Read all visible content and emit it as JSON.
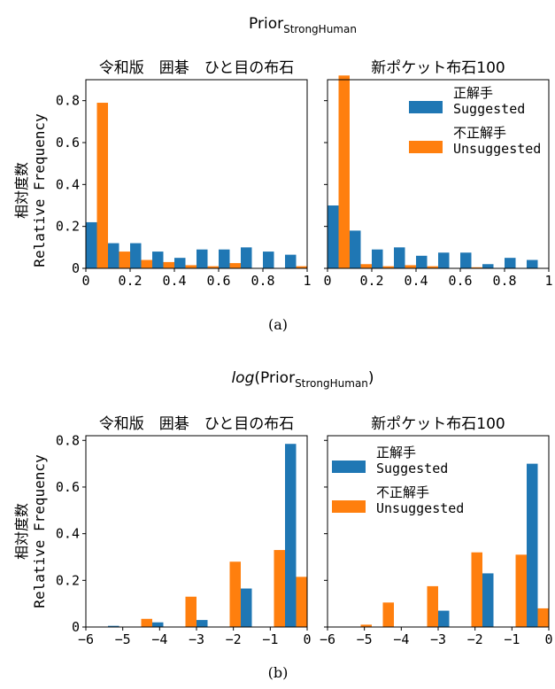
{
  "colors": {
    "suggested": "#1f77b4",
    "unsuggested": "#ff7f0e"
  },
  "figure_a": {
    "title_base": "Prior",
    "title_sub": "StrongHuman",
    "caption": "(a)"
  },
  "figure_b": {
    "title_prefix": "log",
    "title_base": "(Prior",
    "title_sub": "StrongHuman",
    "title_suffix": ")",
    "caption": "(b)"
  },
  "ylabel_jp": "相対度数",
  "ylabel_en": "Relative Frequency",
  "legend": {
    "suggested_jp": "正解手",
    "suggested_en": "Suggested",
    "unsuggested_jp": "不正解手",
    "unsuggested_en": "Unsuggested"
  },
  "chart_data": [
    {
      "id": "a-left",
      "type": "bar",
      "title": "令和版　囲碁　ひと目の布石",
      "xlim": [
        0,
        1
      ],
      "ylim": [
        0,
        0.9
      ],
      "xticks": [
        0,
        0.2,
        0.4,
        0.6,
        0.8,
        1
      ],
      "xticklabels": [
        "0",
        "0.2",
        "0.4",
        "0.6",
        "0.8",
        "1"
      ],
      "yticks": [
        0,
        0.2,
        0.4,
        0.6,
        0.8
      ],
      "yticklabels": [
        "0",
        "0.2",
        "0.4",
        "0.6",
        "0.8"
      ],
      "bin_edges": [
        0,
        0.1,
        0.2,
        0.3,
        0.4,
        0.5,
        0.6,
        0.7,
        0.8,
        0.9,
        1.0
      ],
      "series": [
        {
          "name": "Suggested",
          "values": [
            0.22,
            0.12,
            0.12,
            0.08,
            0.05,
            0.09,
            0.09,
            0.1,
            0.08,
            0.065
          ]
        },
        {
          "name": "Unsuggested",
          "values": [
            0.79,
            0.08,
            0.04,
            0.03,
            0.015,
            0.01,
            0.025,
            0.0,
            0.0,
            0.01
          ]
        }
      ],
      "legend": false
    },
    {
      "id": "a-right",
      "type": "bar",
      "title": "新ポケット布石100",
      "xlim": [
        0,
        1
      ],
      "ylim": [
        0,
        0.9
      ],
      "xticks": [
        0,
        0.2,
        0.4,
        0.6,
        0.8,
        1
      ],
      "xticklabels": [
        "0",
        "0.2",
        "0.4",
        "0.6",
        "0.8",
        "1"
      ],
      "yticks": [
        0,
        0.2,
        0.4,
        0.6,
        0.8
      ],
      "yticklabels": [
        "",
        "",
        "",
        "",
        ""
      ],
      "bin_edges": [
        0,
        0.1,
        0.2,
        0.3,
        0.4,
        0.5,
        0.6,
        0.7,
        0.8,
        0.9,
        1.0
      ],
      "series": [
        {
          "name": "Suggested",
          "values": [
            0.3,
            0.18,
            0.09,
            0.1,
            0.06,
            0.075,
            0.075,
            0.02,
            0.05,
            0.04
          ]
        },
        {
          "name": "Unsuggested",
          "values": [
            0.92,
            0.02,
            0.01,
            0.015,
            0.01,
            0.0,
            0.005,
            0.0,
            0.0,
            0.0
          ]
        }
      ],
      "legend": true,
      "legend_position": "top-right"
    },
    {
      "id": "b-left",
      "type": "bar",
      "title": "令和版　囲碁　ひと目の布石",
      "xlim": [
        -6,
        0
      ],
      "ylim": [
        0,
        0.82
      ],
      "xticks": [
        -6,
        -5,
        -4,
        -3,
        -2,
        -1,
        0
      ],
      "xticklabels": [
        "−6",
        "−5",
        "−4",
        "−3",
        "−2",
        "−1",
        "0"
      ],
      "yticks": [
        0,
        0.2,
        0.4,
        0.6,
        0.8
      ],
      "yticklabels": [
        "0",
        "0.2",
        "0.4",
        "0.6",
        "0.8"
      ],
      "bin_edges": [
        -6,
        -5.4,
        -4.8,
        -4.2,
        -3.6,
        -3.0,
        -2.4,
        -1.8,
        -1.2,
        -0.6,
        0
      ],
      "series": [
        {
          "name": "Suggested",
          "values": [
            0.0,
            0.005,
            0.0,
            0.02,
            0.0,
            0.03,
            0.0,
            0.165,
            0.0,
            0.785
          ]
        },
        {
          "name": "Unsuggested",
          "values": [
            0.0,
            0.0,
            0.035,
            0.0,
            0.13,
            0.0,
            0.28,
            0.0,
            0.33,
            0.215
          ]
        }
      ],
      "legend": false
    },
    {
      "id": "b-right",
      "type": "bar",
      "title": "新ポケット布石100",
      "xlim": [
        -6,
        0
      ],
      "ylim": [
        0,
        0.82
      ],
      "xticks": [
        -6,
        -5,
        -4,
        -3,
        -2,
        -1,
        0
      ],
      "xticklabels": [
        "−6",
        "−5",
        "−4",
        "−3",
        "−2",
        "−1",
        "0"
      ],
      "yticks": [
        0,
        0.2,
        0.4,
        0.6,
        0.8
      ],
      "yticklabels": [
        "",
        "",
        "",
        "",
        ""
      ],
      "bin_edges": [
        -6,
        -5.4,
        -4.8,
        -4.2,
        -3.6,
        -3.0,
        -2.4,
        -1.8,
        -1.2,
        -0.6,
        0
      ],
      "series": [
        {
          "name": "Suggested",
          "values": [
            0.0,
            0.0,
            0.0,
            0.0,
            0.0,
            0.07,
            0.0,
            0.23,
            0.0,
            0.7
          ]
        },
        {
          "name": "Unsuggested",
          "values": [
            0.0,
            0.01,
            0.105,
            0.0,
            0.175,
            0.0,
            0.32,
            0.0,
            0.31,
            0.08
          ]
        }
      ],
      "legend": true,
      "legend_position": "top-left"
    }
  ]
}
